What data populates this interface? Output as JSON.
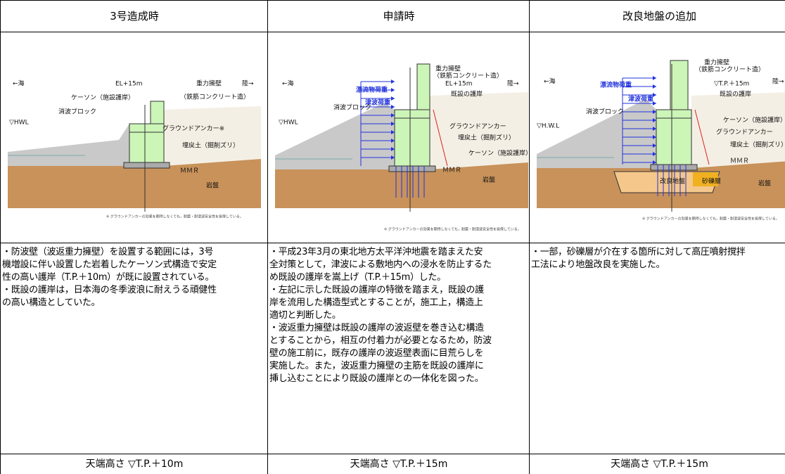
{
  "table": {
    "headers": [
      "3号造成時",
      "申請時",
      "改良地盤の追加"
    ],
    "diagrams": [
      {
        "labels": [
          "←海",
          "EL+15m",
          "重力擁壁",
          "陸→",
          "（鉄筋コンクリート造）",
          "ケーソン（施設護岸）",
          "消波ブロック",
          "▽HWL",
          "グラウンドアンカー※",
          "埋戻土（掘削ズリ）",
          "ＭＭＲ",
          "岩盤"
        ],
        "note": "※ グラウンドアンカーの効果を期待しなくても，耐震・耐津波安全性を担保している。"
      },
      {
        "labels": [
          "←海",
          "重力擁壁",
          "（鉄筋コンクリート造）",
          "EL+15m",
          "漂流物荷重",
          "既設の護岸",
          "陸→",
          "津波荷重",
          "消波ブロック",
          "▽HWL",
          "グラウンドアンカー",
          "埋戻土（掘削ズリ）",
          "ケーソン（施設護岸）",
          "ＭＭＲ",
          "岩盤"
        ],
        "note": "※ グラウンドアンカーの効果を期待しなくても，耐震・耐津波安全性を担保している。"
      },
      {
        "labels": [
          "←海",
          "重力擁壁",
          "（鉄筋コンクリート造）",
          "漂流物荷重",
          "▽T.P.＋15m",
          "陸→",
          "既設の護岸",
          "津波荷重",
          "消波ブロック",
          "ケーソン（施設護岸）",
          "▽H.W.L",
          "グラウンドアンカー",
          "埋戻土（掘削ズリ）",
          "ＭＭＲ",
          "改良地盤",
          "砂礫層",
          "岩盤"
        ],
        "note": "※ グラウンドアンカーの効果を期待しなくても，耐震・耐津波安全性を担保している。"
      }
    ],
    "descriptions": [
      [
        "・防波壁（波返重力擁壁）を設置する範囲には，3号",
        "機増設に伴い設置した岩着したケーソン式構造で安定",
        "性の高い護岸（T.P.＋10m）が既に設置されている。",
        "・既設の護岸は，日本海の冬季波浪に耐えうる頑健性",
        "の高い構造としていた。"
      ],
      [
        "・平成23年3月の東北地方太平洋沖地震を踏まえた安",
        "全対策として，津波による敷地内への浸水を防止するた",
        "め既設の護岸を嵩上げ（T.P.＋15m）した。",
        "・左記に示した既設の護岸の特徴を踏まえ，既設の護",
        "岸を流用した構造型式とすることが，施工上，構造上",
        "適切と判断した。",
        "・波返重力擁壁は既設の護岸の波返壁を巻き込む構造",
        "とすることから，相互の付着力が必要となるため，防波",
        "壁の施工前に，既存の護岸の波返壁表面に目荒らしを",
        "実施した。また，波返重力擁壁の主筋を既設の護岸に",
        "挿し込むことにより既設の護岸との一体化を図った。"
      ],
      [
        "・一部，砂礫層が介在する箇所に対して高圧噴射撹拌",
        "工法により地盤改良を実施した。"
      ]
    ],
    "footer": [
      "天端高さ ▽T.P.＋10m",
      "天端高さ ▽T.P.＋15m",
      "天端高さ ▽T.P.＋15m"
    ]
  }
}
